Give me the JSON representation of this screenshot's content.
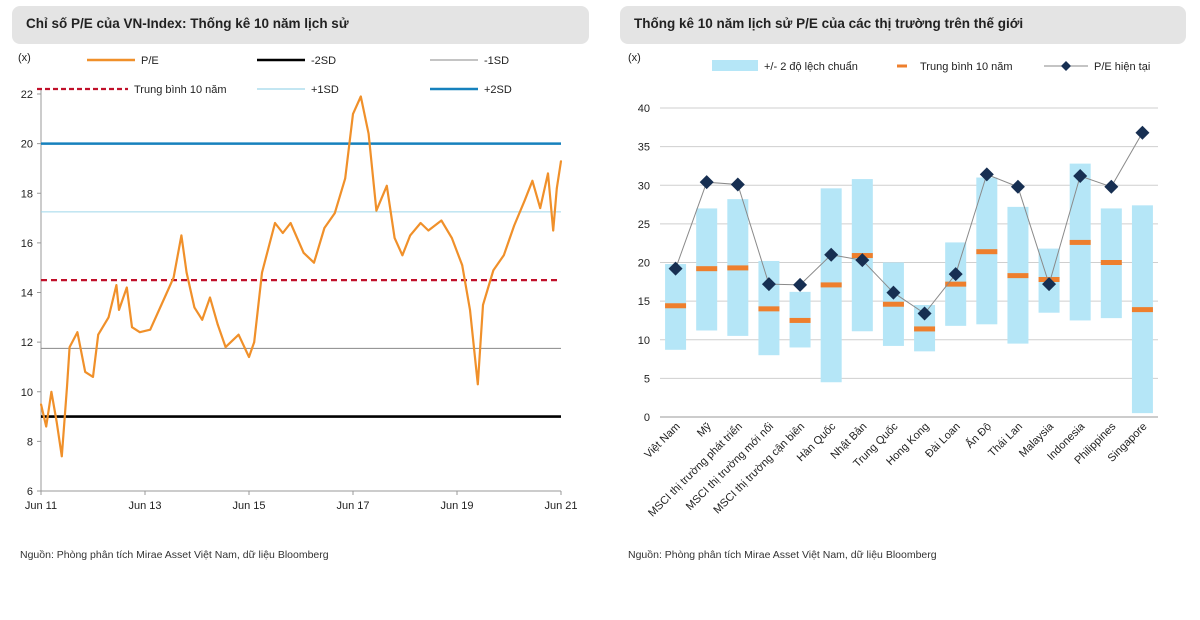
{
  "chart_data": [
    {
      "type": "line",
      "title": "Chỉ số P/E của VN-Index: Thống kê 10 năm lịch sử",
      "ylabel": "(x)",
      "xlabel": "",
      "ylim": [
        6,
        22
      ],
      "yticks": [
        6,
        8,
        10,
        12,
        14,
        16,
        18,
        20,
        22
      ],
      "x_tick_labels": [
        "Jun 11",
        "Jun 13",
        "Jun 15",
        "Jun 17",
        "Jun 19",
        "Jun 21"
      ],
      "x_tick_years": [
        2011.5,
        2013.5,
        2015.5,
        2017.5,
        2019.5,
        2021.5
      ],
      "xlim": [
        2011.5,
        2021.5
      ],
      "series": [
        {
          "name": "P/E",
          "color": "#f0902a",
          "x": [
            2011.5,
            2011.6,
            2011.7,
            2011.8,
            2011.9,
            2012.0,
            2012.05,
            2012.2,
            2012.35,
            2012.5,
            2012.6,
            2012.8,
            2012.95,
            2013.0,
            2013.15,
            2013.25,
            2013.4,
            2013.6,
            2013.9,
            2014.05,
            2014.2,
            2014.3,
            2014.45,
            2014.6,
            2014.75,
            2014.9,
            2015.05,
            2015.3,
            2015.5,
            2015.6,
            2015.75,
            2016.0,
            2016.15,
            2016.3,
            2016.55,
            2016.75,
            2016.95,
            2017.15,
            2017.35,
            2017.5,
            2017.65,
            2017.8,
            2017.95,
            2018.05,
            2018.15,
            2018.3,
            2018.45,
            2018.6,
            2018.8,
            2018.95,
            2019.2,
            2019.4,
            2019.6,
            2019.75,
            2019.9,
            2020.0,
            2020.1,
            2020.2,
            2020.4,
            2020.6,
            2020.8,
            2020.95,
            2021.1,
            2021.25,
            2021.35,
            2021.42,
            2021.5
          ],
          "values": [
            9.5,
            8.6,
            10.0,
            8.8,
            7.4,
            10.2,
            11.8,
            12.4,
            10.8,
            10.6,
            12.3,
            13.0,
            14.3,
            13.3,
            14.2,
            12.6,
            12.4,
            12.5,
            13.9,
            14.6,
            16.3,
            14.8,
            13.4,
            12.9,
            13.8,
            12.7,
            11.8,
            12.3,
            11.4,
            12.0,
            14.8,
            16.8,
            16.4,
            16.8,
            15.6,
            15.2,
            16.6,
            17.2,
            18.6,
            21.2,
            21.9,
            20.4,
            17.3,
            17.8,
            18.3,
            16.2,
            15.5,
            16.3,
            16.8,
            16.5,
            16.9,
            16.2,
            15.1,
            13.3,
            10.3,
            13.5,
            14.2,
            14.9,
            15.5,
            16.7,
            17.7,
            18.5,
            17.4,
            18.8,
            16.5,
            18.2,
            19.3
          ]
        }
      ],
      "reference_lines": [
        {
          "name": "-2SD",
          "value": 9.0,
          "color": "#000000",
          "style": "solid-thick"
        },
        {
          "name": "-1SD",
          "value": 11.75,
          "color": "#888888",
          "style": "solid-thin"
        },
        {
          "name": "Trung bình 10 năm",
          "value": 14.5,
          "color": "#c0102a",
          "style": "dashed"
        },
        {
          "name": "+1SD",
          "value": 17.25,
          "color": "#9fd8ea",
          "style": "solid-thin"
        },
        {
          "name": "+2SD",
          "value": 20.0,
          "color": "#1681bd",
          "style": "solid-thick"
        }
      ],
      "legend": [
        {
          "label": "P/E",
          "key": "pe"
        },
        {
          "label": "-2SD",
          "key": "m2"
        },
        {
          "label": "-1SD",
          "key": "m1"
        },
        {
          "label": "Trung bình 10 năm",
          "key": "avg"
        },
        {
          "label": "+1SD",
          "key": "p1"
        },
        {
          "label": "+2SD",
          "key": "p2"
        }
      ],
      "source": "Nguồn: Phòng phân tích Mirae Asset Việt Nam, dữ liệu Bloomberg"
    },
    {
      "type": "bar",
      "title": "Thống kê 10 năm lịch sử P/E của các thị trường trên thế giới",
      "ylabel": "(x)",
      "ylim": [
        0,
        40
      ],
      "yticks": [
        0,
        5,
        10,
        15,
        20,
        25,
        30,
        35,
        40
      ],
      "categories": [
        "Việt Nam",
        "Mỹ",
        "MSCI thị trường phát triển",
        "MSCI thị trường mới nổi",
        "MSCI thị trường cận biên",
        "Hàn Quốc",
        "Nhật Bản",
        "Trung Quốc",
        "Hong Kong",
        "Đài Loan",
        "Ấn Độ",
        "Thái Lan",
        "Malaysia",
        "Indonesia",
        "Philippines",
        "Singapore"
      ],
      "series": [
        {
          "name": "+/- 2 độ lệch chuẩn (thấp)",
          "values": [
            8.7,
            11.2,
            10.5,
            8.0,
            9.0,
            4.5,
            11.1,
            9.2,
            8.5,
            11.8,
            12.0,
            9.5,
            13.5,
            12.5,
            12.8,
            0.5
          ]
        },
        {
          "name": "+/- 2 độ lệch chuẩn (cao)",
          "values": [
            19.8,
            27.0,
            28.2,
            20.2,
            16.2,
            29.6,
            30.8,
            20.0,
            14.5,
            22.6,
            31.0,
            27.2,
            21.8,
            32.8,
            27.0,
            27.4
          ]
        },
        {
          "name": "Trung bình 10 năm",
          "values": [
            14.4,
            19.2,
            19.3,
            14.0,
            12.5,
            17.1,
            20.9,
            14.6,
            11.4,
            17.2,
            21.4,
            18.3,
            17.8,
            22.6,
            20.0,
            13.9
          ]
        },
        {
          "name": "P/E hiện tại",
          "values": [
            19.2,
            30.4,
            30.1,
            17.2,
            17.1,
            21.0,
            20.3,
            16.1,
            13.4,
            18.5,
            31.4,
            29.8,
            17.2,
            31.2,
            29.8,
            36.8
          ]
        }
      ],
      "legend": [
        {
          "label": "+/- 2 độ lệch chuẩn",
          "key": "band"
        },
        {
          "label": "Trung bình 10 năm",
          "key": "avg"
        },
        {
          "label": "P/E hiện tại",
          "key": "cur"
        }
      ],
      "colors": {
        "band": "#b5e6f7",
        "avg": "#ee7f2d",
        "cur": "#172f52",
        "line": "#8a8a8a",
        "grid": "#cfcfcf"
      },
      "source": "Nguồn: Phòng phân tích Mirae Asset Việt Nam, dữ liệu Bloomberg"
    }
  ]
}
